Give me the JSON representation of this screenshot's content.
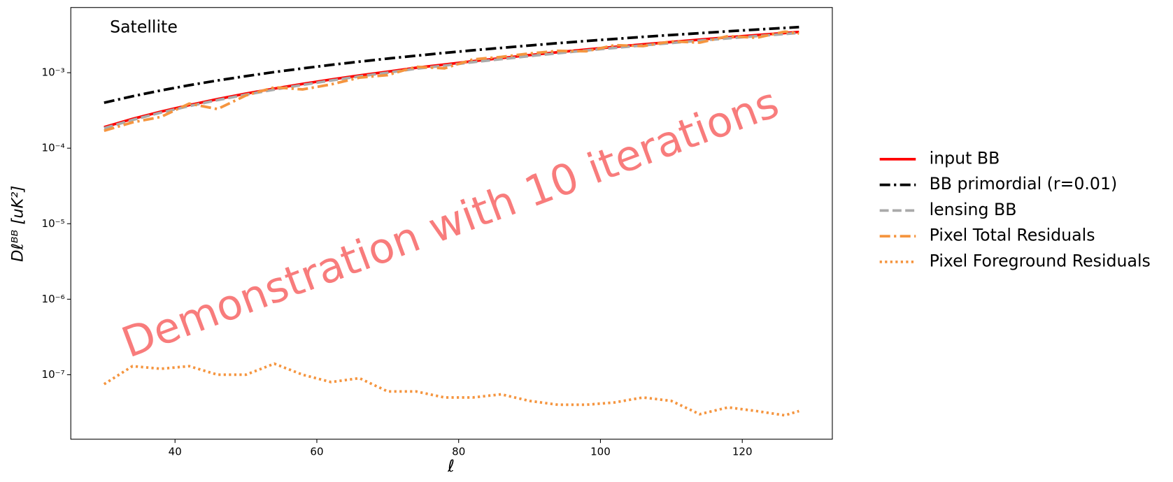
{
  "chart_data": {
    "type": "line",
    "annotation": "Satellite",
    "watermark": "Demonstration with 10 iterations",
    "xlabel": "ℓ",
    "ylabel": "Dℓᴮᴮ [uK²]",
    "log_y": true,
    "legend": "outside right",
    "x": [
      30,
      34,
      38,
      42,
      46,
      50,
      54,
      58,
      62,
      66,
      70,
      74,
      78,
      82,
      86,
      90,
      94,
      98,
      102,
      106,
      110,
      114,
      118,
      122,
      126,
      128
    ],
    "series": [
      {
        "name": "input BB",
        "color": "#ff0000",
        "linestyle": "solid",
        "values": [
          0.00019,
          0.000244,
          0.000305,
          0.000372,
          0.000447,
          0.000528,
          0.000616,
          0.00071,
          0.000812,
          0.00092,
          0.00103,
          0.00116,
          0.00128,
          0.00142,
          0.00156,
          0.00171,
          0.00187,
          0.00203,
          0.0022,
          0.00237,
          0.00255,
          0.00274,
          0.00294,
          0.00314,
          0.00335,
          0.00346
        ]
      },
      {
        "name": "BB primordial (r=0.01)",
        "color": "#000000",
        "linestyle": "dashdot",
        "values": [
          0.0004,
          0.000488,
          0.000582,
          0.000683,
          0.000789,
          0.000901,
          0.00102,
          0.00114,
          0.00127,
          0.0014,
          0.00154,
          0.00168,
          0.00183,
          0.00198,
          0.00213,
          0.00229,
          0.00246,
          0.00263,
          0.0028,
          0.00298,
          0.00316,
          0.00334,
          0.00353,
          0.00372,
          0.00392,
          0.00402
        ]
      },
      {
        "name": "lensing BB",
        "color": "#aaaaaa",
        "linestyle": "dashed",
        "values": [
          0.000184,
          0.000237,
          0.000296,
          0.000361,
          0.000434,
          0.000512,
          0.000598,
          0.000689,
          0.000788,
          0.000892,
          0.001,
          0.00113,
          0.00124,
          0.00138,
          0.00151,
          0.00166,
          0.00181,
          0.00197,
          0.00213,
          0.0023,
          0.00247,
          0.00266,
          0.00285,
          0.00305,
          0.00325,
          0.00336
        ]
      },
      {
        "name": "Pixel Total Residuals",
        "color": "#f5953f",
        "linestyle": "dashdot",
        "values": [
          0.00017,
          0.00022,
          0.00026,
          0.00039,
          0.00033,
          0.0005,
          0.00064,
          0.0006,
          0.0007,
          0.00086,
          0.00093,
          0.0012,
          0.00114,
          0.0015,
          0.00162,
          0.0018,
          0.00195,
          0.00192,
          0.00232,
          0.00225,
          0.0026,
          0.0025,
          0.00305,
          0.0029,
          0.0035,
          0.0033
        ]
      },
      {
        "name": "Pixel Foreground Residuals",
        "color": "#f5953f",
        "linestyle": "dotted",
        "values": [
          7.5e-08,
          1.3e-07,
          1.2e-07,
          1.3e-07,
          1e-07,
          1e-07,
          1.4e-07,
          1e-07,
          8e-08,
          9e-08,
          6e-08,
          6e-08,
          5e-08,
          5e-08,
          5.5e-08,
          4.5e-08,
          4e-08,
          4e-08,
          4.3e-08,
          5e-08,
          4.5e-08,
          3e-08,
          3.7e-08,
          3.3e-08,
          2.9e-08,
          3.3e-08
        ]
      }
    ],
    "xlim": [
      25.3,
      132.7
    ],
    "xticks": [
      40,
      60,
      80,
      100,
      120
    ],
    "ylim": [
      1.4e-08,
      0.0073
    ],
    "yticks": [
      {
        "value": 1e-07,
        "label": "10⁻⁷"
      },
      {
        "value": 1e-06,
        "label": "10⁻⁶"
      },
      {
        "value": 1e-05,
        "label": "10⁻⁵"
      },
      {
        "value": 0.0001,
        "label": "10⁻⁴"
      },
      {
        "value": 0.001,
        "label": "10⁻³"
      }
    ]
  }
}
